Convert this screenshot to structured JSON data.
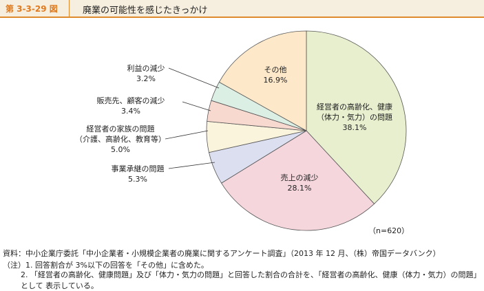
{
  "chart_data": {
    "type": "pie",
    "figure_label": "第 3-3-29 図",
    "title": "廃業の可能性を感じたきっかけ",
    "categories": [
      "経営者の高齢化、健康\n（体力・気力）の問題",
      "売上の減少",
      "事業承継の問題",
      "経営者の家族の問題\n（介護、高齢化、教育等）",
      "販売先、顧客の減少",
      "利益の減少",
      "その他"
    ],
    "values": [
      38.1,
      28.1,
      5.3,
      5.0,
      3.4,
      3.2,
      16.9
    ],
    "value_labels": [
      "38.1%",
      "28.1%",
      "5.3%",
      "5.0%",
      "3.4%",
      "3.2%",
      "16.9%"
    ],
    "colors": [
      "#e7efcf",
      "#f5d6dd",
      "#dcdff0",
      "#fbf4dd",
      "#f8d9d0",
      "#dcefe5",
      "#fde8c9"
    ],
    "annotation": "（n=620）",
    "source": "資料：中小企業庁委託「中小企業者・小規模企業者の廃業に関するアンケート調査」（2013 年 12 月、（株）帝国データバンク）",
    "notes": [
      "（注）1.  回答割合が 3%以下の回答を「その他」に含めた。",
      "2. 「経営者の高齢化、健康問題」及び「体力・気力の問題」と回答した割合の合計を、「経営者の高齢化、健康（体力・気力）の問題」として 表示している。"
    ]
  }
}
